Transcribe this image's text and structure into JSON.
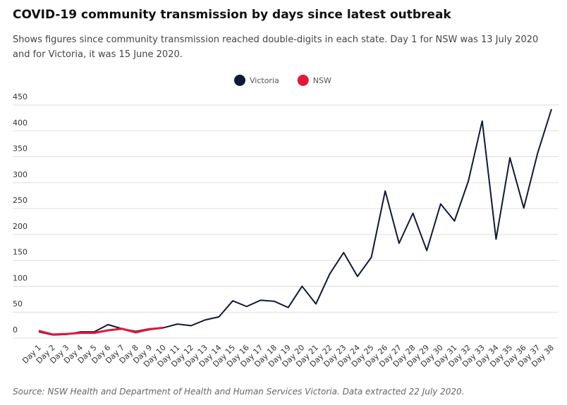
{
  "chart_data": {
    "type": "line",
    "title": "COVID-19 community transmission by days since latest outbreak",
    "subtitle": "Shows figures since community transmission reached double-digits in each state. Day 1 for NSW was 13 July 2020 and for Victoria, it was 15 June 2020.",
    "source": "Source: NSW Health and Department of Health and Human Services Victoria. Data extracted 22 July 2020.",
    "categories": [
      "Day 1",
      "Day 2",
      "Day 3",
      "Day 4",
      "Day 5",
      "Day 6",
      "Day 7",
      "Day 8",
      "Day 9",
      "Day 10",
      "Day 11",
      "Day 12",
      "Day 13",
      "Day 14",
      "Day 15",
      "Day 16",
      "Day 17",
      "Day 18",
      "Day 19",
      "Day 20",
      "Day 21",
      "Day 22",
      "Day 23",
      "Day 24",
      "Day 25",
      "Day 26",
      "Day 27",
      "Day 28",
      "Day 29",
      "Day 30",
      "Day 31",
      "Day 32",
      "Day 33",
      "Day 34",
      "Day 35",
      "Day 36",
      "Day 37",
      "Day 38"
    ],
    "series": [
      {
        "name": "Victoria",
        "color": "#0f1a33",
        "values": [
          12,
          6,
          7,
          12,
          12,
          26,
          18,
          13,
          18,
          20,
          27,
          24,
          35,
          41,
          72,
          61,
          73,
          71,
          59,
          100,
          66,
          124,
          165,
          119,
          156,
          284,
          183,
          241,
          169,
          259,
          226,
          303,
          419,
          191,
          348,
          251,
          357,
          442
        ]
      },
      {
        "name": "NSW",
        "color": "#e3173e",
        "values": [
          14,
          7,
          8,
          10,
          10,
          15,
          18,
          11,
          17,
          20,
          null,
          null,
          null,
          null,
          null,
          null,
          null,
          null,
          null,
          null,
          null,
          null,
          null,
          null,
          null,
          null,
          null,
          null,
          null,
          null,
          null,
          null,
          null,
          null,
          null,
          null,
          null,
          null
        ]
      }
    ],
    "ylim": [
      0,
      450
    ],
    "yticks": [
      0,
      50,
      100,
      150,
      200,
      250,
      300,
      350,
      400,
      450
    ],
    "grid": true
  }
}
